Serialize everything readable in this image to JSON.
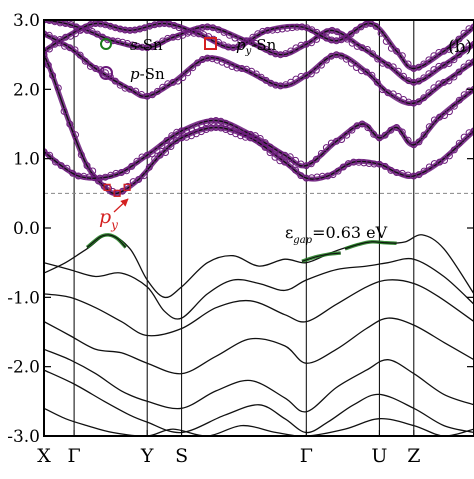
{
  "chart_data": {
    "type": "line",
    "panel_label": "(b)",
    "title": "",
    "xlabel": "",
    "ylabel": "",
    "ylim": [
      -3.0,
      3.0
    ],
    "y_ticks": [
      {
        "value": 3.0,
        "label": "3.0"
      },
      {
        "value": 2.0,
        "label": "2.0"
      },
      {
        "value": 1.0,
        "label": "1.0"
      },
      {
        "value": 0.0,
        "label": "0.0"
      },
      {
        "value": -1.0,
        "label": "-1.0"
      },
      {
        "value": -2.0,
        "label": "-2.0"
      },
      {
        "value": -3.0,
        "label": "-3.0"
      }
    ],
    "k_path": [
      "X",
      "Γ",
      "Y",
      "S",
      "Γ",
      "U",
      "Z"
    ],
    "k_positions": [
      0.0,
      0.07,
      0.24,
      0.32,
      0.61,
      0.78,
      0.86
    ],
    "legend": [
      {
        "label_prefix": "s",
        "label_sub": "",
        "label_suffix": "-Sn",
        "marker": "circle",
        "color": "#1a7a1a"
      },
      {
        "label_prefix": "p",
        "label_sub": "y",
        "label_suffix": "-Sn",
        "marker": "square",
        "color": "#d42020"
      },
      {
        "label_prefix": "p",
        "label_sub": "",
        "label_suffix": "-Sn",
        "marker": "circle",
        "color": "#6a1a7a"
      }
    ],
    "annotations": {
      "gap_symbol": "ε",
      "gap_sub": "gap",
      "gap_value": "=0.63 eV",
      "arrow_label": "p",
      "arrow_label_sub": "y"
    },
    "gap_eV": 0.63,
    "cbm": {
      "k": 0.17,
      "energy": 0.5
    },
    "band_line_color": "#111111",
    "conduction_bands": [
      {
        "k": [
          0.0,
          0.02,
          0.06,
          0.1,
          0.14,
          0.17,
          0.22,
          0.27,
          0.32,
          0.4,
          0.48,
          0.56,
          0.61,
          0.66,
          0.72,
          0.78,
          0.82,
          0.86,
          0.92,
          1.0
        ],
        "energy": [
          2.5,
          2.2,
          1.5,
          0.9,
          0.6,
          0.5,
          0.7,
          1.05,
          1.3,
          1.45,
          1.3,
          0.95,
          0.72,
          0.75,
          0.95,
          0.92,
          0.8,
          0.75,
          0.95,
          1.4
        ]
      },
      {
        "k": [
          0.0,
          0.04,
          0.08,
          0.13,
          0.18,
          0.24,
          0.32,
          0.4,
          0.48,
          0.56,
          0.61,
          0.68,
          0.74,
          0.78,
          0.82,
          0.86,
          0.92,
          1.0
        ],
        "energy": [
          1.1,
          0.9,
          0.75,
          0.72,
          0.8,
          1.05,
          1.4,
          1.55,
          1.35,
          1.05,
          0.9,
          1.25,
          1.5,
          1.3,
          1.45,
          1.2,
          1.6,
          2.0
        ]
      },
      {
        "k": [
          0.0,
          0.06,
          0.12,
          0.2,
          0.24,
          0.3,
          0.38,
          0.46,
          0.55,
          0.61,
          0.68,
          0.75,
          0.8,
          0.86,
          0.93,
          1.0
        ],
        "energy": [
          2.8,
          2.6,
          2.3,
          2.0,
          1.9,
          2.1,
          2.45,
          2.3,
          2.05,
          2.2,
          2.5,
          2.25,
          1.95,
          1.8,
          2.1,
          2.4
        ]
      },
      {
        "k": [
          0.0,
          0.05,
          0.1,
          0.16,
          0.24,
          0.3,
          0.38,
          0.47,
          0.55,
          0.61,
          0.67,
          0.74,
          0.8,
          0.86,
          0.93,
          1.0
        ],
        "energy": [
          3.0,
          2.95,
          2.85,
          2.7,
          2.6,
          2.75,
          2.9,
          2.7,
          2.5,
          2.65,
          2.85,
          2.6,
          2.35,
          2.1,
          2.35,
          2.65
        ]
      },
      {
        "k": [
          0.0,
          0.05,
          0.12,
          0.2,
          0.28,
          0.36,
          0.44,
          0.52,
          0.6,
          0.68,
          0.76,
          0.82,
          0.86,
          0.93,
          1.0
        ],
        "energy": [
          2.55,
          2.75,
          2.95,
          2.85,
          2.95,
          2.8,
          2.6,
          2.85,
          2.9,
          2.7,
          2.95,
          2.55,
          2.3,
          2.55,
          2.9
        ]
      }
    ],
    "valence_bands": [
      {
        "k": [
          0.0,
          0.05,
          0.1,
          0.15,
          0.2,
          0.24,
          0.28,
          0.32,
          0.38,
          0.44,
          0.5,
          0.56,
          0.61,
          0.67,
          0.72,
          0.76,
          0.8,
          0.84,
          0.88,
          0.93,
          1.0
        ],
        "energy": [
          -0.65,
          -0.5,
          -0.3,
          -0.1,
          -0.3,
          -0.75,
          -1.0,
          -0.85,
          -0.5,
          -0.4,
          -0.55,
          -0.45,
          -0.5,
          -0.35,
          -0.25,
          -0.2,
          -0.22,
          -0.2,
          -0.1,
          -0.3,
          -0.95
        ]
      },
      {
        "k": [
          0.0,
          0.06,
          0.12,
          0.18,
          0.24,
          0.28,
          0.32,
          0.38,
          0.44,
          0.5,
          0.56,
          0.61,
          0.68,
          0.75,
          0.8,
          0.86,
          0.93,
          1.0
        ],
        "energy": [
          -0.5,
          -0.6,
          -0.7,
          -0.65,
          -0.85,
          -1.2,
          -1.3,
          -0.95,
          -0.75,
          -0.8,
          -0.9,
          -0.75,
          -0.6,
          -0.55,
          -0.5,
          -0.45,
          -0.7,
          -1.1
        ]
      },
      {
        "k": [
          0.0,
          0.06,
          0.12,
          0.18,
          0.24,
          0.32,
          0.4,
          0.48,
          0.56,
          0.61,
          0.68,
          0.75,
          0.8,
          0.86,
          0.92,
          1.0
        ],
        "energy": [
          -0.95,
          -1.0,
          -1.15,
          -1.35,
          -1.55,
          -1.45,
          -1.15,
          -1.05,
          -1.25,
          -1.35,
          -1.1,
          -0.85,
          -0.75,
          -0.8,
          -1.0,
          -1.35
        ]
      },
      {
        "k": [
          0.0,
          0.06,
          0.12,
          0.18,
          0.24,
          0.32,
          0.4,
          0.48,
          0.56,
          0.61,
          0.68,
          0.75,
          0.8,
          0.86,
          0.93,
          1.0
        ],
        "energy": [
          -1.35,
          -1.55,
          -1.75,
          -1.8,
          -1.95,
          -2.1,
          -1.85,
          -1.6,
          -1.7,
          -1.95,
          -1.75,
          -1.45,
          -1.3,
          -1.4,
          -1.65,
          -1.9
        ]
      },
      {
        "k": [
          0.0,
          0.06,
          0.12,
          0.18,
          0.24,
          0.32,
          0.4,
          0.48,
          0.56,
          0.61,
          0.68,
          0.75,
          0.8,
          0.86,
          0.93,
          1.0
        ],
        "energy": [
          -1.75,
          -1.9,
          -2.1,
          -2.35,
          -2.5,
          -2.6,
          -2.35,
          -2.2,
          -2.45,
          -2.65,
          -2.3,
          -2.05,
          -1.9,
          -2.1,
          -2.4,
          -2.55
        ]
      },
      {
        "k": [
          0.0,
          0.07,
          0.14,
          0.2,
          0.24,
          0.32,
          0.42,
          0.5,
          0.56,
          0.61,
          0.66,
          0.72,
          0.78,
          0.86,
          0.93,
          1.0
        ],
        "energy": [
          -2.05,
          -2.25,
          -2.5,
          -2.7,
          -2.8,
          -2.95,
          -2.7,
          -2.55,
          -2.75,
          -2.95,
          -2.8,
          -2.55,
          -2.4,
          -2.6,
          -2.85,
          -2.95
        ]
      },
      {
        "k": [
          0.0,
          0.05,
          0.1,
          0.16,
          0.24,
          0.3,
          0.38,
          0.46,
          0.54,
          0.61,
          0.7,
          0.78,
          0.86,
          0.93,
          1.0
        ],
        "energy": [
          -2.6,
          -2.75,
          -2.85,
          -2.95,
          -3.0,
          -2.9,
          -3.0,
          -2.85,
          -2.95,
          -3.0,
          -2.9,
          -2.75,
          -2.85,
          -3.0,
          -2.9
        ]
      }
    ],
    "s_sn_weighted_segments": [
      {
        "k": [
          0.1,
          0.13,
          0.15,
          0.17,
          0.19
        ],
        "energy": [
          -0.28,
          -0.13,
          -0.1,
          -0.15,
          -0.28
        ]
      },
      {
        "k": [
          0.6,
          0.63,
          0.66,
          0.69
        ],
        "energy": [
          -0.48,
          -0.42,
          -0.38,
          -0.36
        ]
      },
      {
        "k": [
          0.7,
          0.73,
          0.76,
          0.79,
          0.82
        ],
        "energy": [
          -0.3,
          -0.24,
          -0.2,
          -0.21,
          -0.22
        ]
      }
    ]
  }
}
